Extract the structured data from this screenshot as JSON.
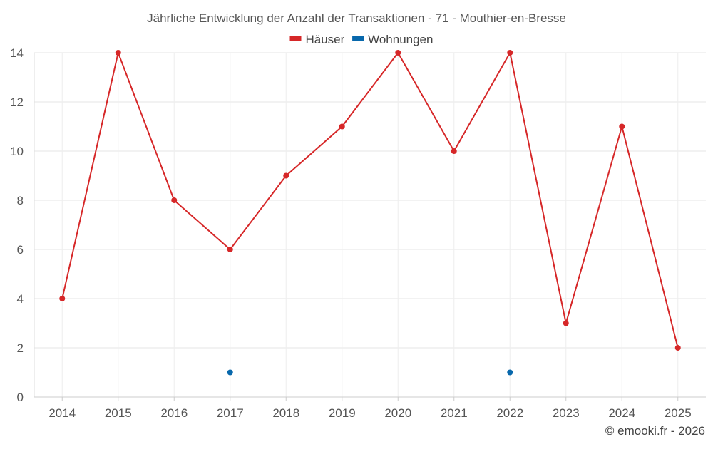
{
  "chart_data": {
    "type": "line",
    "title": "Jährliche Entwicklung der Anzahl der Transaktionen - 71 - Mouthier-en-Bresse",
    "xlabel": "",
    "ylabel": "",
    "ylim": [
      0,
      14
    ],
    "y_ticks": [
      0,
      2,
      4,
      6,
      8,
      10,
      12,
      14
    ],
    "grid": true,
    "legend_position": "top-center",
    "categories": [
      "2014",
      "2015",
      "2016",
      "2017",
      "2018",
      "2019",
      "2020",
      "2021",
      "2022",
      "2023",
      "2024",
      "2025"
    ],
    "series": [
      {
        "name": "Häuser",
        "color": "#d62728",
        "values": [
          4,
          14,
          8,
          6,
          9,
          11,
          14,
          10,
          14,
          3,
          11,
          2
        ]
      },
      {
        "name": "Wohnungen",
        "color": "#0868ac",
        "values": [
          null,
          null,
          null,
          1,
          null,
          null,
          null,
          null,
          1,
          null,
          null,
          null
        ]
      }
    ]
  },
  "credit": "© emooki.fr - 2026"
}
